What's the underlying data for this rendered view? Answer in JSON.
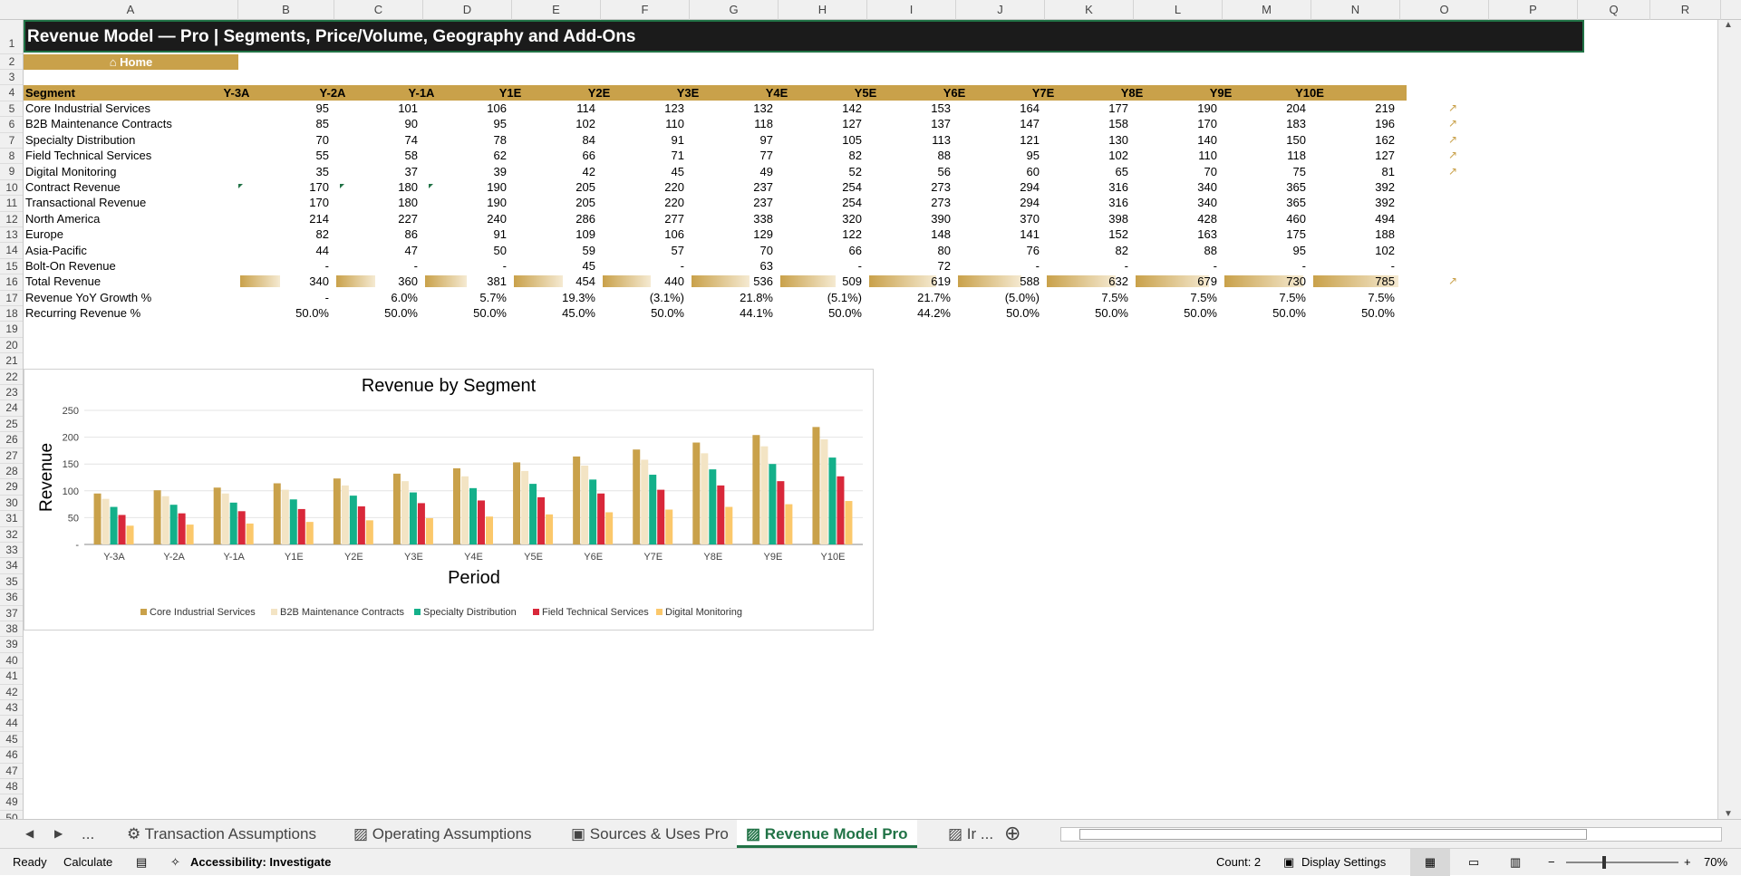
{
  "columns": [
    "A",
    "B",
    "C",
    "D",
    "E",
    "F",
    "G",
    "H",
    "I",
    "J",
    "K",
    "L",
    "M",
    "N",
    "O",
    "P",
    "Q",
    "R"
  ],
  "rows": [
    "1",
    "2",
    "3",
    "4",
    "5",
    "6",
    "7",
    "8",
    "9",
    "10",
    "11",
    "12",
    "13",
    "14",
    "15",
    "16",
    "17",
    "18",
    "19",
    "20",
    "21",
    "22",
    "23",
    "24",
    "25",
    "26",
    "27",
    "28",
    "29",
    "30",
    "31",
    "32",
    "33",
    "34",
    "35",
    "36",
    "37",
    "38",
    "39",
    "40",
    "41",
    "42",
    "43",
    "44",
    "45",
    "46",
    "47",
    "48",
    "49",
    "50"
  ],
  "title": "Revenue Model — Pro | Segments, Price/Volume, Geography and Add-Ons",
  "home_link": "⌂ Home",
  "table": {
    "header": [
      "Segment",
      "Y-3A",
      "Y-2A",
      "Y-1A",
      "Y1E",
      "Y2E",
      "Y3E",
      "Y4E",
      "Y5E",
      "Y6E",
      "Y7E",
      "Y8E",
      "Y9E",
      "Y10E"
    ],
    "rows": [
      {
        "label": "Core Industrial Services",
        "values": [
          "95",
          "101",
          "106",
          "114",
          "123",
          "132",
          "142",
          "153",
          "164",
          "177",
          "190",
          "204",
          "219"
        ]
      },
      {
        "label": "B2B Maintenance Contracts",
        "values": [
          "85",
          "90",
          "95",
          "102",
          "110",
          "118",
          "127",
          "137",
          "147",
          "158",
          "170",
          "183",
          "196"
        ]
      },
      {
        "label": "Specialty Distribution",
        "values": [
          "70",
          "74",
          "78",
          "84",
          "91",
          "97",
          "105",
          "113",
          "121",
          "130",
          "140",
          "150",
          "162"
        ]
      },
      {
        "label": "Field Technical Services",
        "values": [
          "55",
          "58",
          "62",
          "66",
          "71",
          "77",
          "82",
          "88",
          "95",
          "102",
          "110",
          "118",
          "127"
        ]
      },
      {
        "label": "Digital Monitoring",
        "values": [
          "35",
          "37",
          "39",
          "42",
          "45",
          "49",
          "52",
          "56",
          "60",
          "65",
          "70",
          "75",
          "81"
        ]
      },
      {
        "label": "Contract Revenue",
        "values": [
          "170",
          "180",
          "190",
          "205",
          "220",
          "237",
          "254",
          "273",
          "294",
          "316",
          "340",
          "365",
          "392"
        ]
      },
      {
        "label": "Transactional Revenue",
        "values": [
          "170",
          "180",
          "190",
          "205",
          "220",
          "237",
          "254",
          "273",
          "294",
          "316",
          "340",
          "365",
          "392"
        ]
      },
      {
        "label": "North America",
        "values": [
          "214",
          "227",
          "240",
          "286",
          "277",
          "338",
          "320",
          "390",
          "370",
          "398",
          "428",
          "460",
          "494"
        ]
      },
      {
        "label": "Europe",
        "values": [
          "82",
          "86",
          "91",
          "109",
          "106",
          "129",
          "122",
          "148",
          "141",
          "152",
          "163",
          "175",
          "188"
        ]
      },
      {
        "label": "Asia-Pacific",
        "values": [
          "44",
          "47",
          "50",
          "59",
          "57",
          "70",
          "66",
          "80",
          "76",
          "82",
          "88",
          "95",
          "102"
        ]
      },
      {
        "label": "Bolt-On Revenue",
        "values": [
          "-",
          "-",
          "-",
          "45",
          "-",
          "63",
          "-",
          "72",
          "-",
          "-",
          "-",
          "-",
          "-"
        ]
      },
      {
        "label": "Total Revenue",
        "values": [
          "340",
          "360",
          "381",
          "454",
          "440",
          "536",
          "509",
          "619",
          "588",
          "632",
          "679",
          "730",
          "785"
        ]
      },
      {
        "label": "Revenue YoY Growth %",
        "values": [
          "-",
          "6.0%",
          "5.7%",
          "19.3%",
          "(3.1%)",
          "21.8%",
          "(5.1%)",
          "21.7%",
          "(5.0%)",
          "7.5%",
          "7.5%",
          "7.5%",
          "7.5%"
        ]
      },
      {
        "label": "Recurring Revenue %",
        "values": [
          "50.0%",
          "50.0%",
          "50.0%",
          "45.0%",
          "50.0%",
          "44.1%",
          "50.0%",
          "44.2%",
          "50.0%",
          "50.0%",
          "50.0%",
          "50.0%",
          "50.0%"
        ]
      }
    ],
    "arrow_glyph": "↗"
  },
  "chart_data": {
    "type": "bar",
    "title": "Revenue by Segment",
    "xlabel": "Period",
    "ylabel": "Revenue",
    "ylim": [
      0,
      250
    ],
    "yticks": [
      "-",
      "50",
      "100",
      "150",
      "200",
      "250"
    ],
    "categories": [
      "Y-3A",
      "Y-2A",
      "Y-1A",
      "Y1E",
      "Y2E",
      "Y3E",
      "Y4E",
      "Y5E",
      "Y6E",
      "Y7E",
      "Y8E",
      "Y9E",
      "Y10E"
    ],
    "series": [
      {
        "name": "Core Industrial Services",
        "color": "#c9a14a",
        "values": [
          95,
          101,
          106,
          114,
          123,
          132,
          142,
          153,
          164,
          177,
          190,
          204,
          219
        ]
      },
      {
        "name": "B2B Maintenance Contracts",
        "color": "#f3e4c4",
        "values": [
          85,
          90,
          95,
          102,
          110,
          118,
          127,
          137,
          147,
          158,
          170,
          183,
          196
        ]
      },
      {
        "name": "Specialty Distribution",
        "color": "#14b08a",
        "values": [
          70,
          74,
          78,
          84,
          91,
          97,
          105,
          113,
          121,
          130,
          140,
          150,
          162
        ]
      },
      {
        "name": "Field Technical Services",
        "color": "#d9283a",
        "values": [
          55,
          58,
          62,
          66,
          71,
          77,
          82,
          88,
          95,
          102,
          110,
          118,
          127
        ]
      },
      {
        "name": "Digital Monitoring",
        "color": "#fbc86b",
        "values": [
          35,
          37,
          39,
          42,
          45,
          49,
          52,
          56,
          60,
          65,
          70,
          75,
          81
        ]
      }
    ],
    "legend": "bottom",
    "grid": true
  },
  "tabs": {
    "nav_prev": "◀",
    "nav_next": "▶",
    "nav_more": "...",
    "items": [
      {
        "label": "Transaction Assumptions",
        "icon": "gear-icon"
      },
      {
        "label": "Operating Assumptions",
        "icon": "chart-icon"
      },
      {
        "label": "Sources & Uses Pro",
        "icon": "briefcase-icon"
      },
      {
        "label": "Revenue Model Pro",
        "icon": "chart-icon",
        "active": true
      },
      {
        "label": "Ir ...",
        "icon": "chart-icon"
      }
    ],
    "add": "⊕"
  },
  "status": {
    "ready": "Ready",
    "calculate": "Calculate",
    "accessibility": "Accessibility: Investigate",
    "count": "Count: 2",
    "display_settings": "Display Settings",
    "zoom": "70%"
  },
  "colors": {
    "gold": "#c9a14a",
    "excel_green": "#217346",
    "title_bg": "#1b1b1b"
  }
}
